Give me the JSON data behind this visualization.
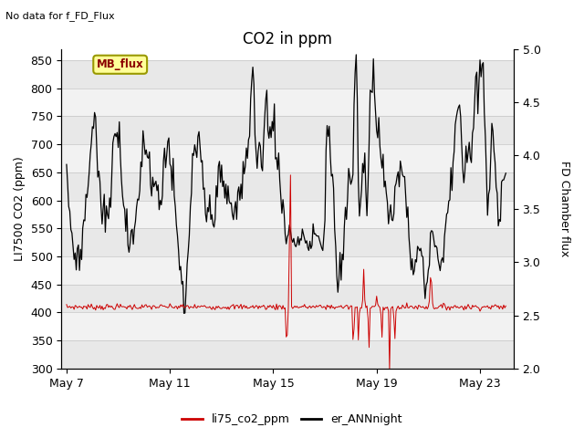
{
  "title": "CO2 in ppm",
  "top_left_text": "No data for f_FD_Flux",
  "ylabel_left": "LI7500 CO2 (ppm)",
  "ylabel_right": "FD Chamber flux",
  "ylim_left": [
    300,
    870
  ],
  "ylim_right": [
    2.0,
    5.0
  ],
  "yticks_left": [
    300,
    350,
    400,
    450,
    500,
    550,
    600,
    650,
    700,
    750,
    800,
    850
  ],
  "yticks_right": [
    2.0,
    2.5,
    3.0,
    3.5,
    4.0,
    4.5,
    5.0
  ],
  "xtick_labels": [
    "May 7",
    "May 11",
    "May 15",
    "May 19",
    "May 23"
  ],
  "legend_label_box": "MB_flux",
  "legend_line1": "li75_co2_ppm",
  "legend_line2": "er_ANNnight",
  "line1_color": "#cc0000",
  "line2_color": "#000000",
  "background_color": "#ffffff",
  "box_color": "#ffff99",
  "box_border_color": "#999900",
  "title_fontsize": 12,
  "label_fontsize": 9,
  "tick_fontsize": 9,
  "band_colors": [
    "#e8e8e8",
    "#f2f2f2"
  ]
}
